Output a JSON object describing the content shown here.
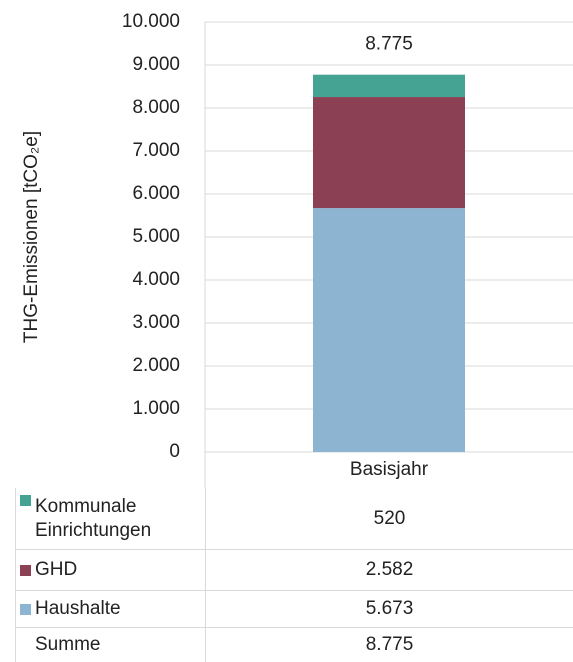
{
  "chart_data": {
    "type": "stacked_bar",
    "y_label": "THG-Emissionen [tCO₂e]",
    "categories": [
      "Basisjahr"
    ],
    "series": [
      {
        "name": "Kommunale Einrichtungen",
        "color": "#45a393",
        "values": [
          520
        ],
        "value_labels": [
          "520"
        ]
      },
      {
        "name": "GHD",
        "color": "#8b4153",
        "values": [
          2582
        ],
        "value_labels": [
          "2.582"
        ]
      },
      {
        "name": "Haushalte",
        "color": "#8db4d0",
        "values": [
          5673
        ],
        "value_labels": [
          "5.673"
        ]
      }
    ],
    "total": {
      "name": "Summe",
      "values": [
        8775
      ],
      "value_labels": [
        "8.775"
      ]
    },
    "ylim": [
      0,
      10000
    ],
    "yticks": [
      0,
      {
        "value": 1000,
        "label": "1.000"
      },
      {
        "value": 2000,
        "label": "2.000"
      },
      {
        "value": 3000,
        "label": "3.000"
      },
      {
        "value": 4000,
        "label": "4.000"
      },
      {
        "value": 5000,
        "label": "5.000"
      },
      {
        "value": 6000,
        "label": "6.000"
      },
      {
        "value": 7000,
        "label": "7.000"
      },
      {
        "value": 8000,
        "label": "8.000"
      },
      {
        "value": 9000,
        "label": "9.000"
      },
      {
        "value": 10000,
        "label": "10.000"
      }
    ],
    "grid": true
  }
}
